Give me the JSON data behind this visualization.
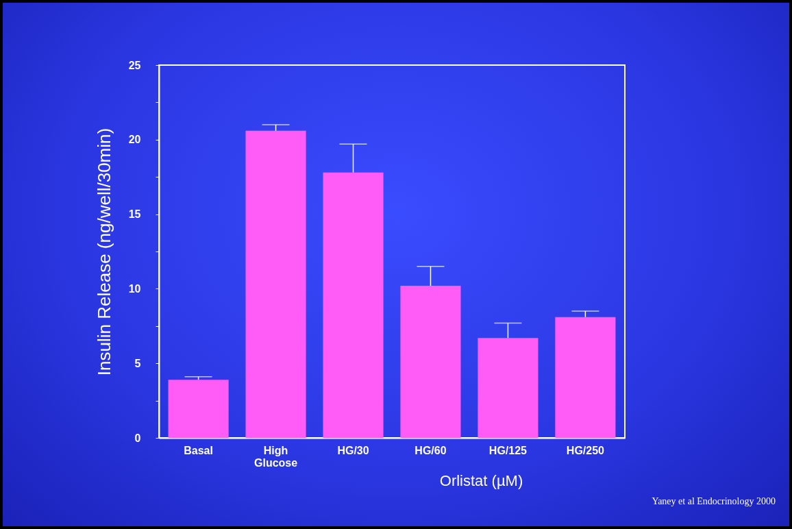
{
  "chart_data": {
    "type": "bar",
    "ylabel": "Insulin Release (ng/well/30min)",
    "xlabel": "Orlistat (µM)",
    "categories": [
      "Basal",
      "High Glucose",
      "HG/30",
      "HG/60",
      "HG/125",
      "HG/250"
    ],
    "values": [
      3.9,
      20.6,
      17.8,
      10.2,
      6.7,
      8.1
    ],
    "errors": [
      [
        3.9,
        4.1
      ],
      [
        20.6,
        21.0
      ],
      [
        17.8,
        19.7
      ],
      [
        10.2,
        11.5
      ],
      [
        6.7,
        7.7
      ],
      [
        8.1,
        8.5
      ]
    ],
    "color": "#ff5cf7",
    "ylim": [
      0,
      25
    ],
    "yticks": [
      0,
      {
        "value": 2.5,
        "label": null
      },
      5,
      {
        "value": 7.5,
        "label": null
      },
      10,
      {
        "value": 12.5,
        "label": null
      },
      15,
      {
        "value": 17.5,
        "label": null
      },
      20,
      {
        "value": 22.5,
        "label": null
      },
      25
    ],
    "grid": false,
    "annotations": [
      "Yaney  et  al Endocrinology 2000"
    ]
  }
}
